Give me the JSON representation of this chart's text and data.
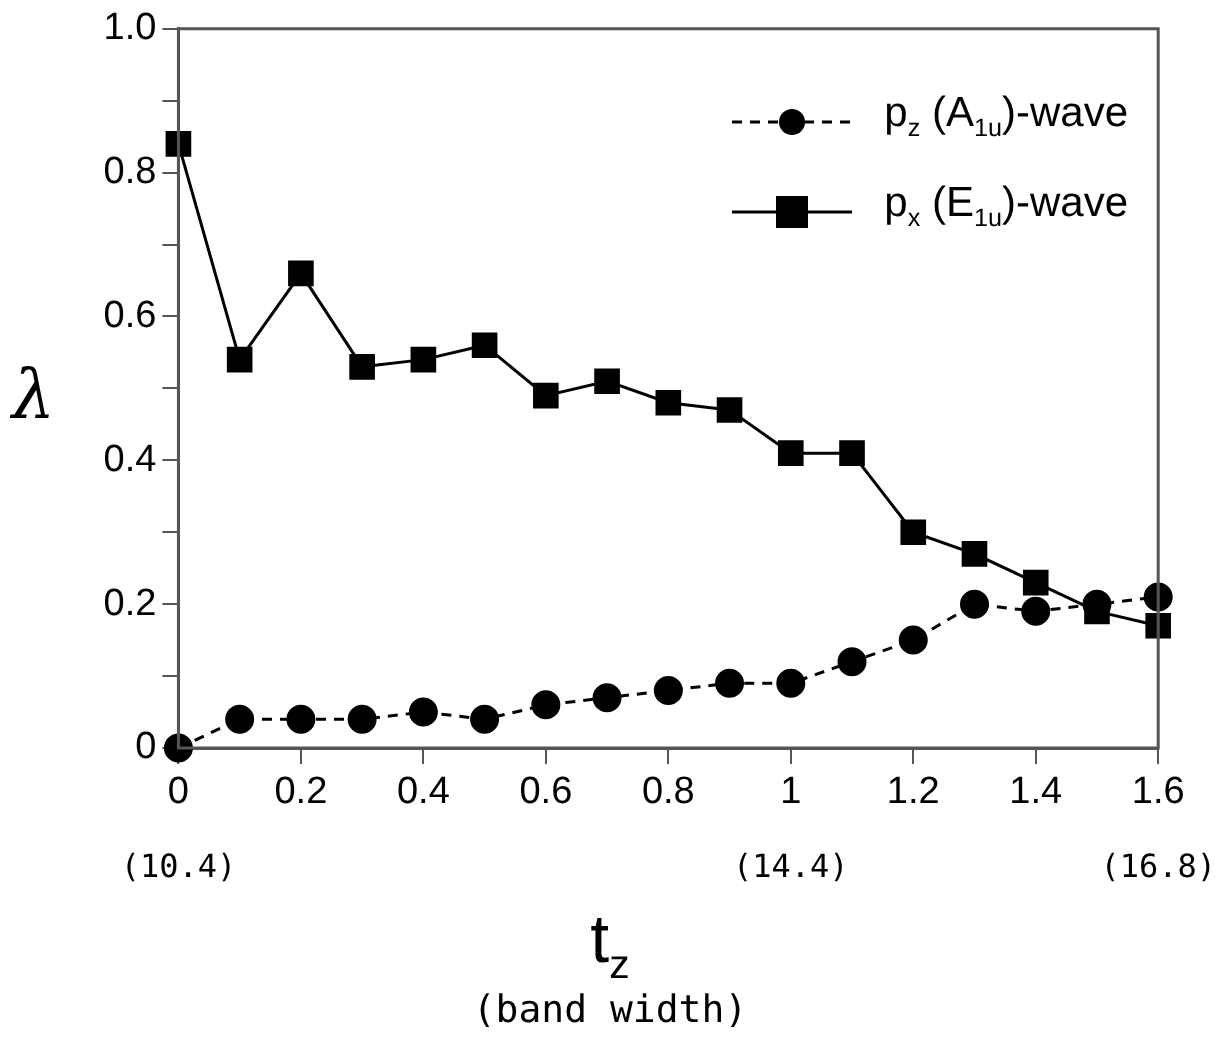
{
  "chart_data": {
    "type": "line",
    "xlabel": "t$_{z}$",
    "x2label": "(band width)",
    "ylabel": "λ",
    "x": [
      0,
      0.1,
      0.2,
      0.3,
      0.4,
      0.5,
      0.6,
      0.7,
      0.8,
      0.9,
      1.0,
      1.1,
      1.2,
      1.3,
      1.4,
      1.5,
      1.6
    ],
    "series": [
      {
        "name": "p$_{z}$ (A$_{1u}$)-wave",
        "color": "#000000",
        "marker": "circle",
        "line_style": "dashed",
        "values": [
          0,
          0.04,
          0.04,
          0.04,
          0.05,
          0.04,
          0.06,
          0.07,
          0.08,
          0.09,
          0.09,
          0.12,
          0.15,
          0.2,
          0.19,
          0.2,
          0.21
        ]
      },
      {
        "name": "p$_{x}$ (E$_{1u}$)-wave",
        "color": "#000000",
        "marker": "square",
        "line_style": "solid",
        "values": [
          0.84,
          0.54,
          0.66,
          0.53,
          0.54,
          0.56,
          0.49,
          0.51,
          0.48,
          0.47,
          0.41,
          0.41,
          0.3,
          0.27,
          0.23,
          0.19,
          0.17
        ]
      }
    ],
    "xlim": [
      0,
      1.6
    ],
    "xticks": [
      0,
      0.2,
      0.4,
      0.6,
      0.8,
      1,
      1.2,
      1.4,
      1.6
    ],
    "x2lim": [
      10.4,
      16.8
    ],
    "x2ticks": [
      {
        "value": 10.4,
        "label": "(10.4)"
      },
      {
        "value": 14.4,
        "label": "(14.4)"
      },
      {
        "value": 16.8,
        "label": "(16.8)"
      }
    ],
    "ylim": [
      0,
      1
    ],
    "yticks": [
      0,
      {
        "value": 0.1,
        "label": null
      },
      0.2,
      {
        "value": 0.3,
        "label": null
      },
      0.4,
      {
        "value": 0.5,
        "label": null
      },
      0.6,
      {
        "value": 0.7,
        "label": null
      },
      0.8,
      {
        "value": 0.9,
        "label": null
      },
      {
        "value": 1,
        "label": "1.0"
      }
    ],
    "grid": false,
    "legend": "top right"
  }
}
